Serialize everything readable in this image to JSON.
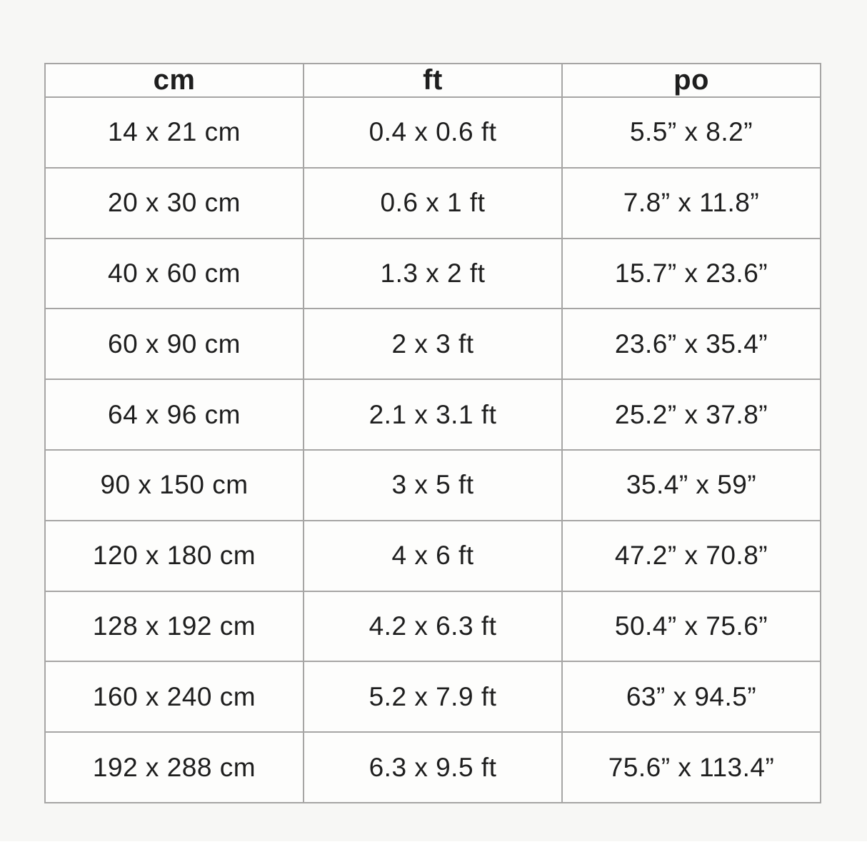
{
  "chart_data": {
    "type": "table",
    "columns": [
      "cm",
      "ft",
      "po"
    ],
    "rows": [
      [
        "14 x 21 cm",
        "0.4 x 0.6 ft",
        "5.5” x 8.2”"
      ],
      [
        "20 x 30 cm",
        "0.6 x 1 ft",
        "7.8” x 11.8”"
      ],
      [
        "40 x 60 cm",
        "1.3 x 2 ft",
        "15.7” x 23.6”"
      ],
      [
        "60 x 90 cm",
        "2 x 3 ft",
        "23.6” x 35.4”"
      ],
      [
        "64 x 96 cm",
        "2.1 x 3.1 ft",
        "25.2” x 37.8”"
      ],
      [
        "90 x 150 cm",
        "3 x 5 ft",
        "35.4” x 59”"
      ],
      [
        "120 x 180 cm",
        "4 x 6 ft",
        "47.2” x 70.8”"
      ],
      [
        "128 x 192 cm",
        "4.2 x 6.3 ft",
        "50.4” x 75.6”"
      ],
      [
        "160 x 240 cm",
        "5.2 x 7.9 ft",
        "63” x 94.5”"
      ],
      [
        "192 x 288 cm",
        "6.3 x 9.5 ft",
        "75.6” x 113.4”"
      ]
    ],
    "layout": {
      "grid": "on",
      "columns_equal_width": true
    }
  },
  "colors": {
    "page_background": "#f7f7f5",
    "cell_background": "#fdfdfc",
    "grid_border": "#a6a5a4",
    "text": "#1e1e1e",
    "bottom_band": "#ffffff"
  }
}
